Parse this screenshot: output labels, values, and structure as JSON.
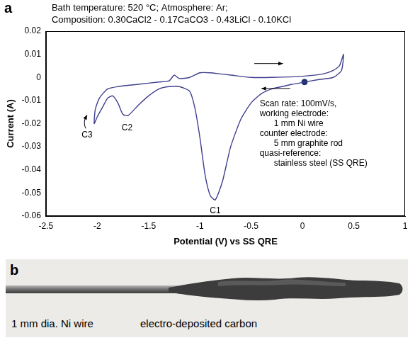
{
  "chart_data": {
    "type": "line",
    "panel_label": "a",
    "header_lines": [
      "Bath temperature: 520 °C; Atmosphere: Ar;",
      "Composition: 0.30CaCl2 - 0.17CaCO3 - 0.43LiCl - 0.10KCl"
    ],
    "x_label": "Potential (V) vs SS QRE",
    "y_label": "Current (A)",
    "x": [
      0.02,
      -0.1,
      -0.2,
      -0.3,
      -0.4,
      -0.5,
      -0.6,
      -0.7,
      -0.78,
      -0.85,
      -0.9,
      -0.95,
      -1.0,
      -1.05,
      -1.1,
      -1.2,
      -1.3,
      -1.4,
      -1.5,
      -1.6,
      -1.7,
      -1.75,
      -1.8,
      -1.85,
      -1.9,
      -1.95,
      -2.0,
      -2.03,
      -2.02,
      -1.98,
      -1.9,
      -1.8,
      -1.6,
      -1.4,
      -1.3,
      -1.25,
      -1.2,
      -1.1,
      -1.0,
      -0.9,
      -0.8,
      -0.7,
      -0.5,
      -0.3,
      0.0,
      0.2,
      0.3,
      0.36,
      0.4,
      0.38,
      0.3,
      0.15,
      0.02
    ],
    "values": [
      -0.002,
      -0.003,
      -0.004,
      -0.005,
      -0.007,
      -0.011,
      -0.018,
      -0.03,
      -0.045,
      -0.053,
      -0.051,
      -0.042,
      -0.026,
      -0.013,
      -0.006,
      -0.004,
      -0.004,
      -0.005,
      -0.008,
      -0.012,
      -0.0165,
      -0.016,
      -0.011,
      -0.008,
      -0.009,
      -0.013,
      -0.017,
      -0.02,
      -0.014,
      -0.009,
      -0.005,
      -0.004,
      -0.003,
      -0.002,
      -0.0015,
      0.001,
      -0.0005,
      0.0,
      0.002,
      0.002,
      0.0015,
      0.001,
      0.0,
      0.0,
      0.0005,
      0.0015,
      0.003,
      0.005,
      0.01,
      0.003,
      0.0,
      -0.001,
      -0.002
    ],
    "color": "#3f3f8f",
    "line_style": "solid",
    "markers": [
      {
        "x": 0.02,
        "y": -0.002,
        "color": "#1c2f6b"
      }
    ],
    "annotations": [
      {
        "text": "C1",
        "x": -0.85,
        "y": -0.056
      },
      {
        "text": "C2",
        "x": -1.71,
        "y": -0.02
      },
      {
        "text": "C3",
        "x": -2.1,
        "y": -0.023
      }
    ],
    "note_lines": [
      "Scan rate: 100mV/s,",
      "working electrode:",
      "      1 mm Ni wire",
      "counter electrode:",
      "      5 mm graphite rod",
      "quasi-reference:",
      "      stainless steel (SS QRE)"
    ],
    "xlim": [
      -2.5,
      1
    ],
    "xticks": [
      -2.5,
      -2,
      -1.5,
      -1,
      -0.5,
      0,
      0.5,
      1
    ],
    "ylim": [
      -0.06,
      0.02
    ],
    "yticks": [
      -0.06,
      -0.05,
      -0.04,
      -0.03,
      -0.02,
      -0.01,
      0,
      0.01,
      0.02
    ],
    "grid": false
  },
  "photo": {
    "panel_label": "b",
    "wire_label": "1 mm dia. Ni wire",
    "deposit_label": "electro-deposited carbon"
  }
}
